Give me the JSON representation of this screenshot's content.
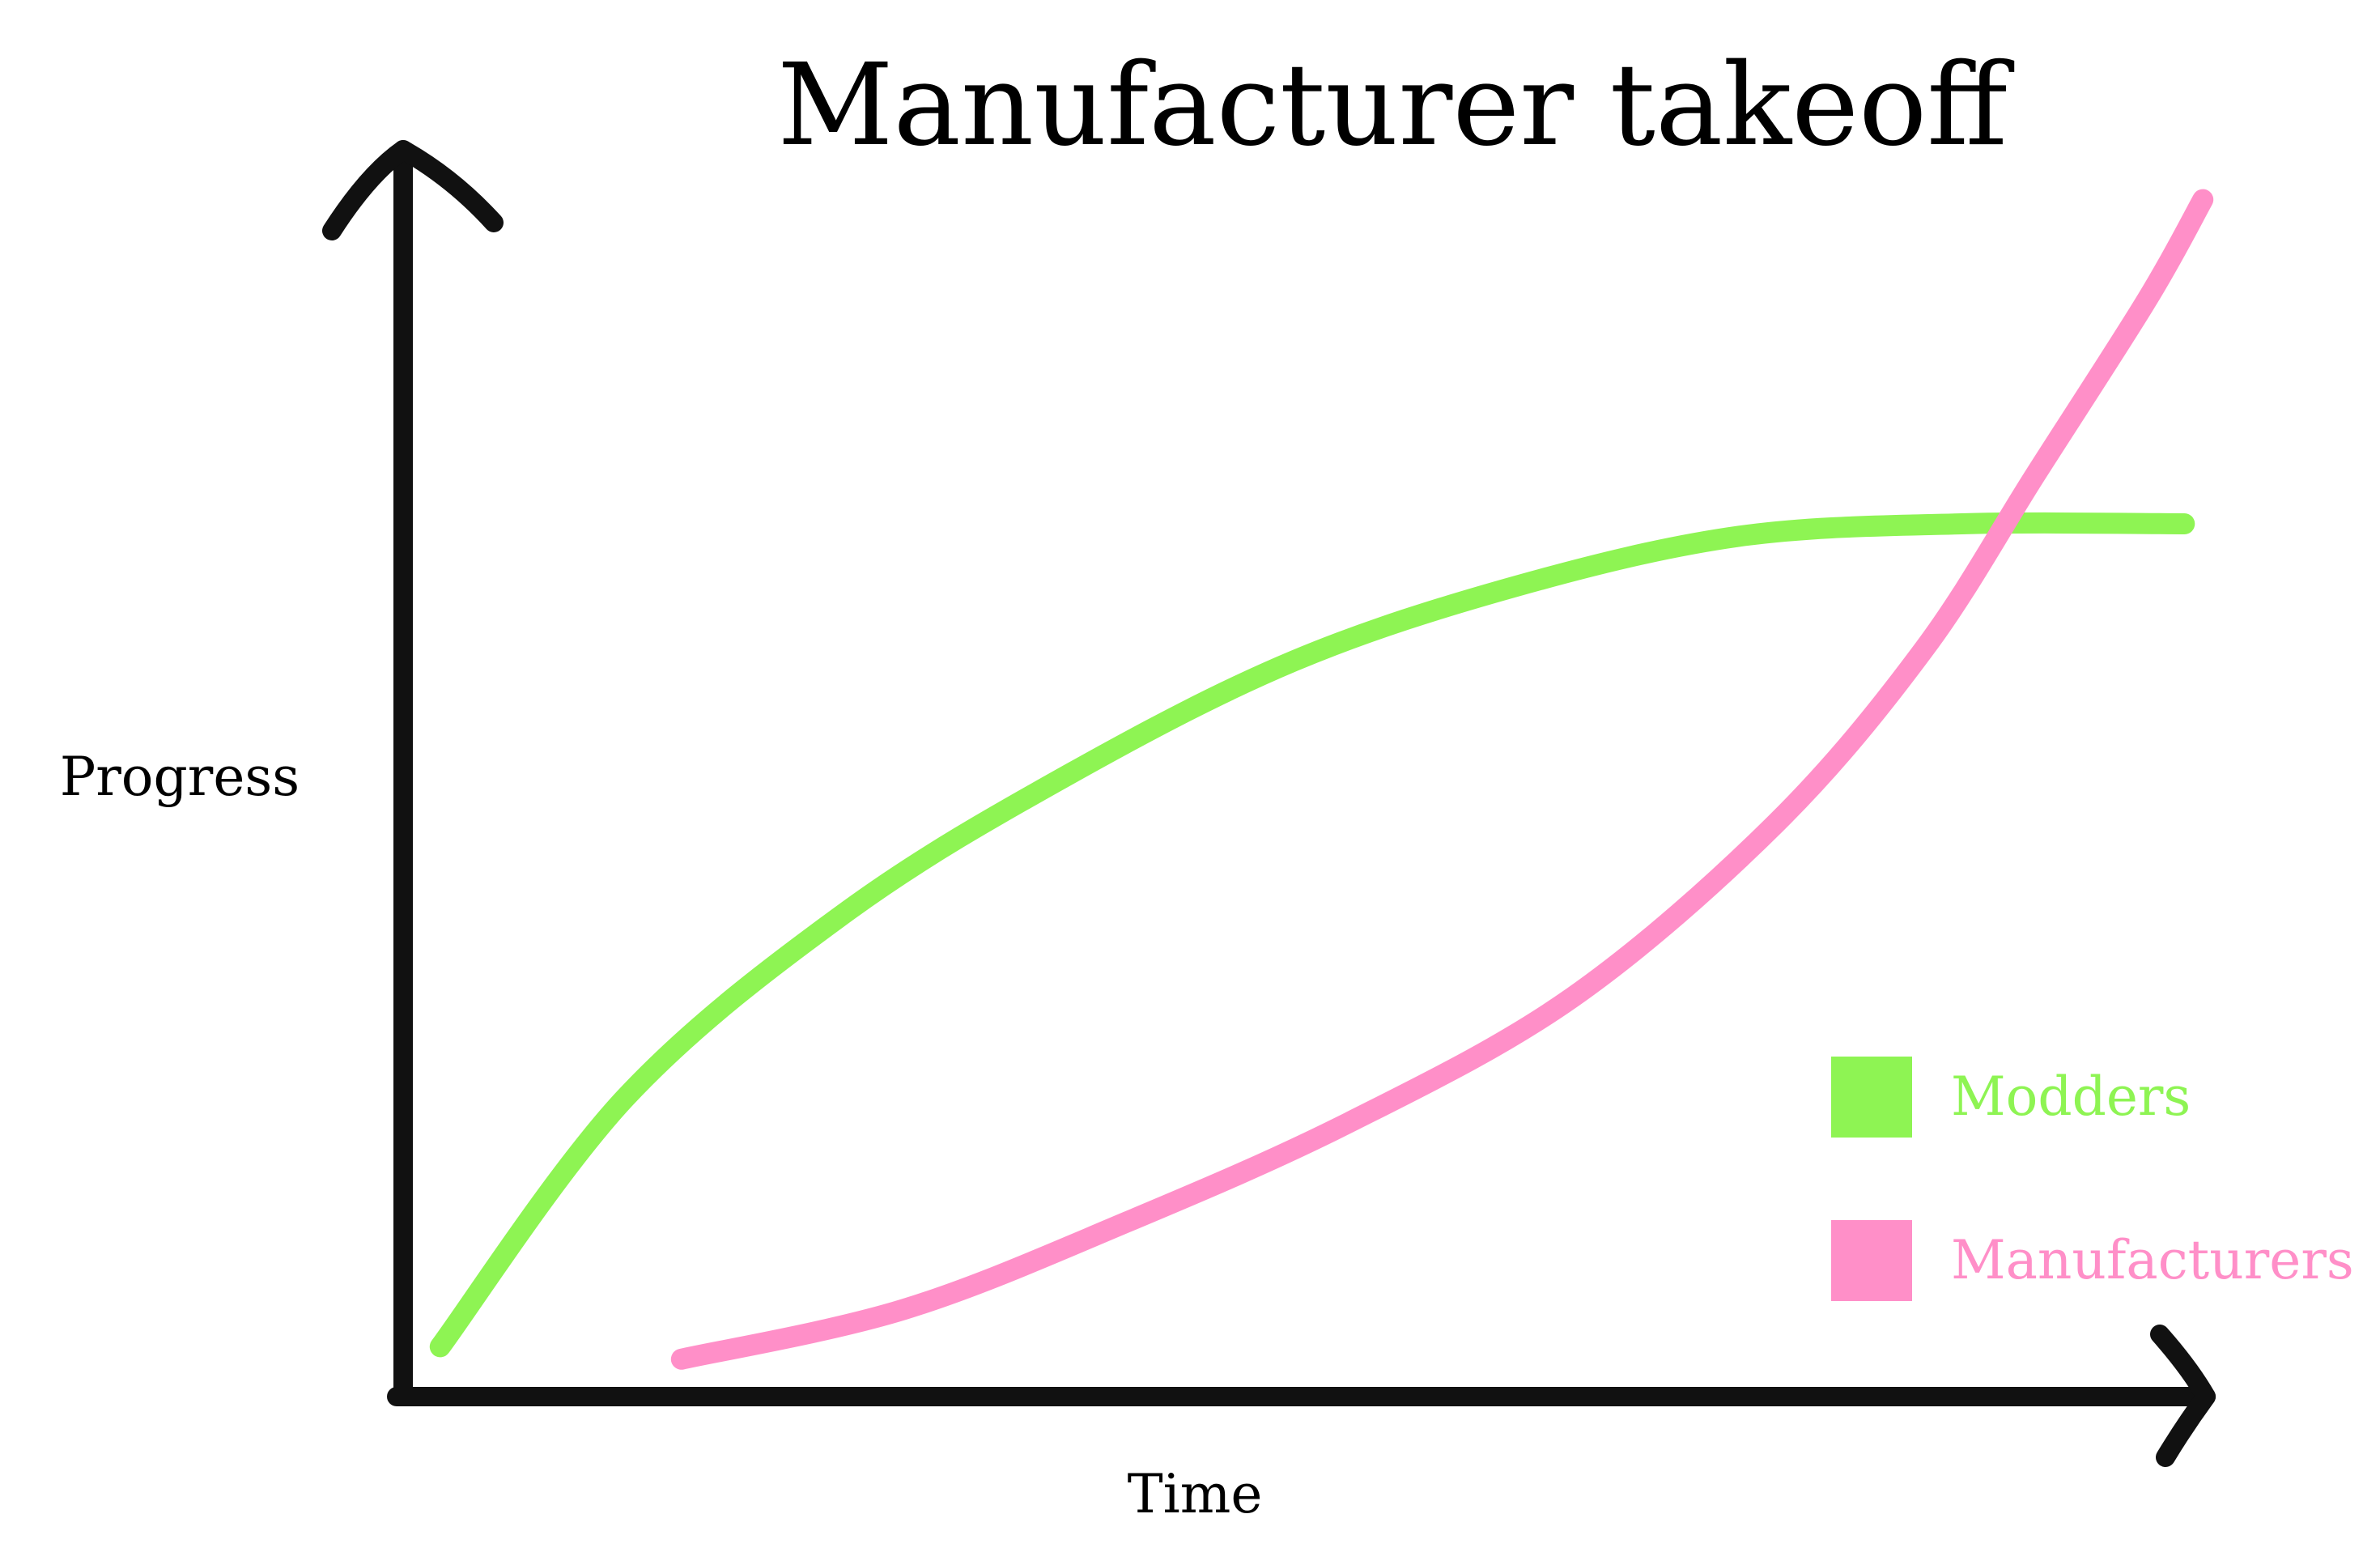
{
  "chart_data": {
    "type": "line",
    "title": "Manufacturer takeoff",
    "xlabel": "Time",
    "ylabel": "Progress",
    "xlim": [
      0,
      10
    ],
    "ylim": [
      0,
      10
    ],
    "grid": false,
    "legend_placement": "bottom-right",
    "series": [
      {
        "name": "Modders",
        "color": "#8ef453",
        "x": [
          0.2,
          1.2,
          2.4,
          3.6,
          4.8,
          6.0,
          7.2,
          8.4,
          9.6
        ],
        "y": [
          0.4,
          2.4,
          3.9,
          5.0,
          5.9,
          6.5,
          6.9,
          7.0,
          7.0
        ]
      },
      {
        "name": "Manufacturers",
        "color": "#ff8fc8",
        "x": [
          1.5,
          2.7,
          3.9,
          5.1,
          6.3,
          7.4,
          8.2,
          8.8,
          9.4,
          9.7
        ],
        "y": [
          0.3,
          0.7,
          1.4,
          2.2,
          3.2,
          4.6,
          6.0,
          7.4,
          8.8,
          9.6
        ]
      }
    ]
  }
}
